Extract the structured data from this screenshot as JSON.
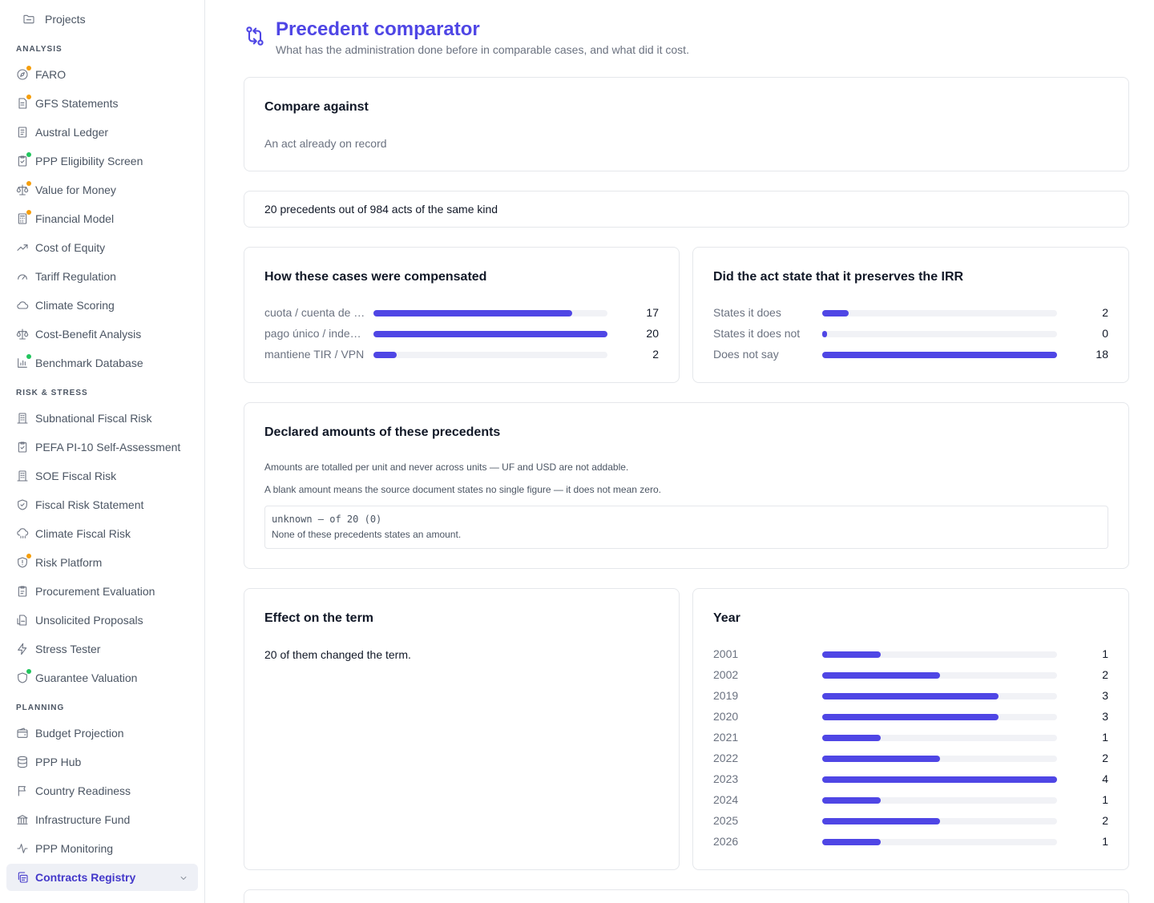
{
  "sidebar": {
    "top_item": {
      "label": "Projects",
      "icon": "folder-icon"
    },
    "sections": [
      {
        "label": "ANALYSIS",
        "items": [
          {
            "label": "FARO",
            "icon": "compass-icon",
            "badge": "#f59e0b"
          },
          {
            "label": "GFS Statements",
            "icon": "document-icon",
            "badge": "#f59e0b"
          },
          {
            "label": "Austral Ledger",
            "icon": "ledger-icon"
          },
          {
            "label": "PPP Eligibility Screen",
            "icon": "clipboard-check-icon",
            "badge": "#22c55e"
          },
          {
            "label": "Value for Money",
            "icon": "scale-icon",
            "badge": "#f59e0b"
          },
          {
            "label": "Financial Model",
            "icon": "calculator-icon",
            "badge": "#f59e0b"
          },
          {
            "label": "Cost of Equity",
            "icon": "trending-up-icon"
          },
          {
            "label": "Tariff Regulation",
            "icon": "gauge-icon"
          },
          {
            "label": "Climate Scoring",
            "icon": "cloud-icon"
          },
          {
            "label": "Cost-Benefit Analysis",
            "icon": "scale-icon"
          },
          {
            "label": "Benchmark Database",
            "icon": "bar-chart-icon",
            "badge": "#22c55e"
          }
        ]
      },
      {
        "label": "RISK & STRESS",
        "items": [
          {
            "label": "Subnational Fiscal Risk",
            "icon": "building-icon"
          },
          {
            "label": "PEFA PI-10 Self-Assessment",
            "icon": "clipboard-check-icon"
          },
          {
            "label": "SOE Fiscal Risk",
            "icon": "building-icon"
          },
          {
            "label": "Fiscal Risk Statement",
            "icon": "shield-check-icon"
          },
          {
            "label": "Climate Fiscal Risk",
            "icon": "cloud-rain-icon"
          },
          {
            "label": "Risk Platform",
            "icon": "shield-alert-icon",
            "badge": "#f59e0b"
          },
          {
            "label": "Procurement Evaluation",
            "icon": "clipboard-icon"
          },
          {
            "label": "Unsolicited Proposals",
            "icon": "file-inbox-icon"
          },
          {
            "label": "Stress Tester",
            "icon": "lightning-icon"
          },
          {
            "label": "Guarantee Valuation",
            "icon": "shield-icon",
            "badge": "#22c55e"
          }
        ]
      },
      {
        "label": "PLANNING",
        "items": [
          {
            "label": "Budget Projection",
            "icon": "wallet-icon"
          },
          {
            "label": "PPP Hub",
            "icon": "database-icon"
          },
          {
            "label": "Country Readiness",
            "icon": "flag-icon"
          },
          {
            "label": "Infrastructure Fund",
            "icon": "bank-icon"
          },
          {
            "label": "PPP Monitoring",
            "icon": "activity-icon"
          },
          {
            "label": "Contracts Registry",
            "icon": "copy-icon",
            "active": true
          }
        ]
      }
    ]
  },
  "header": {
    "title": "Precedent comparator",
    "subtitle": "What has the administration done before in comparable cases, and what did it cost.",
    "icon": "compare-arrows-icon"
  },
  "compare": {
    "title": "Compare against",
    "value": "An act already on record"
  },
  "summary": {
    "text": "20 precedents out of 984 acts of the same kind"
  },
  "compensation": {
    "title": "How these cases were compensated",
    "max": 20,
    "rows": [
      {
        "label": "cuota / cuenta de …",
        "value": 17
      },
      {
        "label": "pago único / inde…",
        "value": 20
      },
      {
        "label": "mantiene TIR / VPN",
        "value": 2
      }
    ]
  },
  "irr": {
    "title": "Did the act state that it preserves the IRR",
    "max": 18,
    "rows": [
      {
        "label": "States it does",
        "value": 2
      },
      {
        "label": "States it does not",
        "value": 0
      },
      {
        "label": "Does not say",
        "value": 18
      }
    ]
  },
  "amounts": {
    "title": "Declared amounts of these precedents",
    "note1": "Amounts are totalled per unit and never across units — UF and USD are not addable.",
    "note2": "A blank amount means the source document states no single figure — it does not mean zero.",
    "box_line1": "unknown — of 20 (0)",
    "box_line2": "None of these precedents states an amount."
  },
  "term": {
    "title": "Effect on the term",
    "text": "20 of them changed the term."
  },
  "year": {
    "title": "Year",
    "max": 4,
    "rows": [
      {
        "label": "2001",
        "value": 1
      },
      {
        "label": "2002",
        "value": 2
      },
      {
        "label": "2019",
        "value": 3
      },
      {
        "label": "2020",
        "value": 3
      },
      {
        "label": "2021",
        "value": 1
      },
      {
        "label": "2022",
        "value": 2
      },
      {
        "label": "2023",
        "value": 4
      },
      {
        "label": "2024",
        "value": 1
      },
      {
        "label": "2025",
        "value": 2
      },
      {
        "label": "2026",
        "value": 1
      }
    ]
  },
  "colors": {
    "accent": "#4f46e5",
    "track": "#f1f2f6",
    "badge_orange": "#f59e0b",
    "badge_green": "#22c55e"
  }
}
